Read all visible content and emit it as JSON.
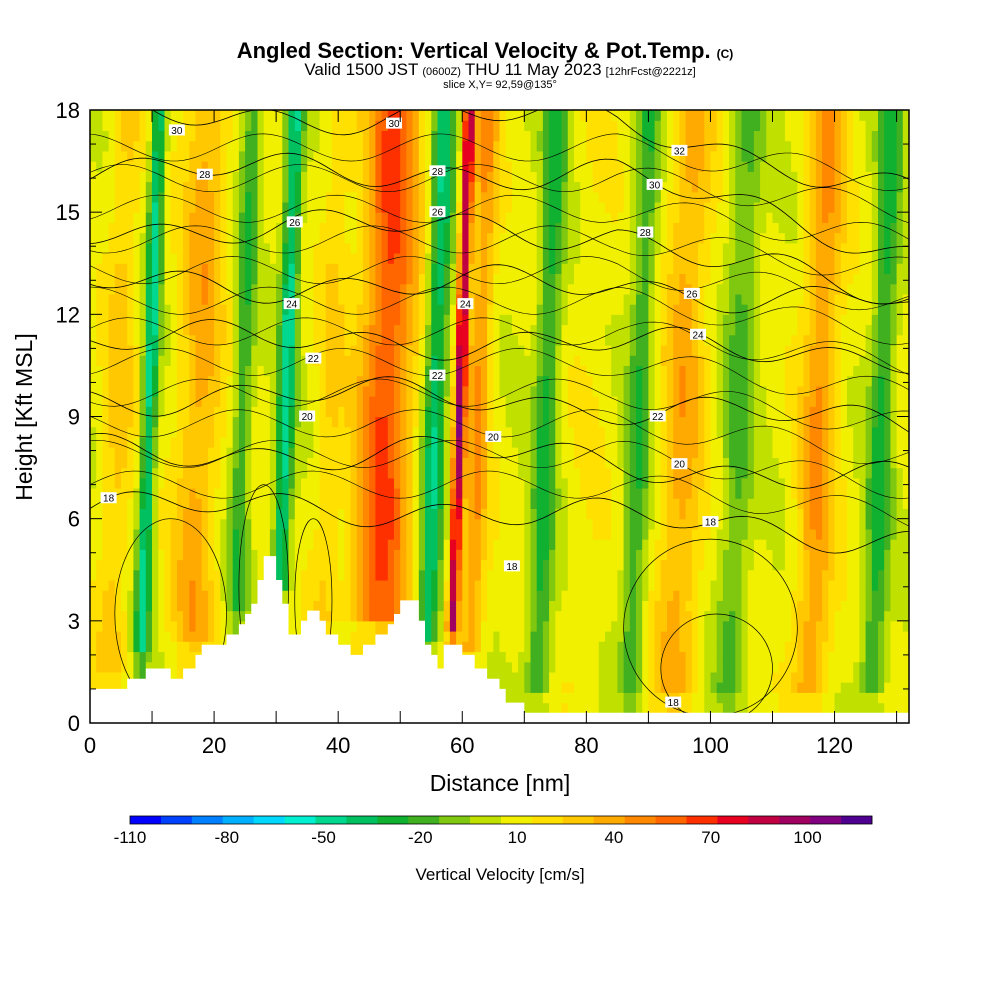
{
  "title": {
    "main": "Angled Section: Vertical Velocity & Pot.Temp.",
    "main_suffix": "(C)",
    "line2_a": "Valid 1500 JST",
    "line2_b": "(0600Z)",
    "line2_c": "THU 11 May 2023",
    "line2_d": "[12hrFcst@2221z]",
    "line3": "slice X,Y= 92,59@135°"
  },
  "chart_data": {
    "type": "heatmap",
    "xlabel": "Distance [nm]",
    "ylabel": "Height [Kft MSL]",
    "xlim": [
      0,
      132
    ],
    "ylim": [
      0,
      18
    ],
    "x_ticks": [
      0,
      20,
      40,
      60,
      80,
      100,
      120
    ],
    "y_ticks": [
      0,
      3,
      6,
      9,
      12,
      15,
      18
    ],
    "colorbar": {
      "title": "Vertical Velocity [cm/s]",
      "tick_labels": [
        "-110",
        "-80",
        "-50",
        "-20",
        "10",
        "40",
        "70",
        "100"
      ],
      "tick_values": [
        -110,
        -80,
        -50,
        -20,
        10,
        40,
        70,
        100
      ],
      "range": [
        -110,
        120
      ],
      "colors": [
        "#0000ff",
        "#0040ff",
        "#0080ff",
        "#00b0ff",
        "#00d8ff",
        "#00f0d0",
        "#00d890",
        "#00c060",
        "#10b030",
        "#40b020",
        "#80c810",
        "#c0e000",
        "#f0f000",
        "#ffe000",
        "#ffc800",
        "#ffaa00",
        "#ff8800",
        "#ff6600",
        "#ff3000",
        "#e80020",
        "#c00040",
        "#a00060",
        "#800080",
        "#500090"
      ]
    },
    "terrain_profile": [
      [
        0,
        1.0
      ],
      [
        6,
        1.0
      ],
      [
        6,
        1.3
      ],
      [
        9,
        1.3
      ],
      [
        9,
        1.6
      ],
      [
        13,
        1.6
      ],
      [
        13,
        1.3
      ],
      [
        15,
        1.3
      ],
      [
        15,
        1.6
      ],
      [
        17,
        1.6
      ],
      [
        17,
        2.0
      ],
      [
        18,
        2.0
      ],
      [
        18,
        2.3
      ],
      [
        22,
        2.3
      ],
      [
        22,
        2.6
      ],
      [
        24,
        2.6
      ],
      [
        24,
        2.9
      ],
      [
        25,
        2.9
      ],
      [
        25,
        3.2
      ],
      [
        26,
        3.2
      ],
      [
        26,
        3.5
      ],
      [
        27,
        3.5
      ],
      [
        27,
        4.2
      ],
      [
        28,
        4.2
      ],
      [
        28,
        4.9
      ],
      [
        30,
        4.9
      ],
      [
        30,
        4.2
      ],
      [
        31,
        4.2
      ],
      [
        31,
        3.5
      ],
      [
        32,
        3.5
      ],
      [
        32,
        2.6
      ],
      [
        34,
        2.6
      ],
      [
        34,
        3.0
      ],
      [
        35,
        3.0
      ],
      [
        35,
        3.3
      ],
      [
        37,
        3.3
      ],
      [
        37,
        3.0
      ],
      [
        38,
        3.0
      ],
      [
        38,
        2.6
      ],
      [
        40,
        2.6
      ],
      [
        40,
        2.3
      ],
      [
        42,
        2.3
      ],
      [
        42,
        2.0
      ],
      [
        44,
        2.0
      ],
      [
        44,
        2.3
      ],
      [
        46,
        2.3
      ],
      [
        46,
        2.6
      ],
      [
        48,
        2.6
      ],
      [
        48,
        2.9
      ],
      [
        49,
        2.9
      ],
      [
        49,
        3.2
      ],
      [
        50,
        3.2
      ],
      [
        50,
        3.6
      ],
      [
        53,
        3.6
      ],
      [
        53,
        3.0
      ],
      [
        54,
        3.0
      ],
      [
        54,
        2.3
      ],
      [
        55,
        2.3
      ],
      [
        55,
        2.0
      ],
      [
        56,
        2.0
      ],
      [
        56,
        1.6
      ],
      [
        57,
        1.6
      ],
      [
        57,
        2.3
      ],
      [
        60,
        2.3
      ],
      [
        60,
        2.0
      ],
      [
        62,
        2.0
      ],
      [
        62,
        1.6
      ],
      [
        64,
        1.6
      ],
      [
        64,
        1.3
      ],
      [
        66,
        1.3
      ],
      [
        66,
        1.0
      ],
      [
        67,
        1.0
      ],
      [
        67,
        0.6
      ],
      [
        70,
        0.6
      ],
      [
        70,
        0.3
      ],
      [
        132,
        0.3
      ]
    ],
    "updraft_cores": [
      {
        "x": 4,
        "w": 2.5,
        "value": 20
      },
      {
        "x": 9,
        "w": 1.2,
        "value": -55
      },
      {
        "x": 17,
        "w": 3.5,
        "value": 30
      },
      {
        "x": 24,
        "w": 1.6,
        "value": -30
      },
      {
        "x": 31,
        "w": 1.4,
        "value": -55
      },
      {
        "x": 38,
        "w": 2.2,
        "value": 15
      },
      {
        "x": 47,
        "w": 4.5,
        "value": 55
      },
      {
        "x": 55,
        "w": 1.8,
        "value": -50
      },
      {
        "x": 59,
        "w": 0.9,
        "value": 85
      },
      {
        "x": 62,
        "w": 2.0,
        "value": 35
      },
      {
        "x": 73,
        "w": 2.0,
        "value": -35
      },
      {
        "x": 80,
        "w": 3.5,
        "value": 5
      },
      {
        "x": 88,
        "w": 2.0,
        "value": -30
      },
      {
        "x": 95,
        "w": 3.5,
        "value": 30
      },
      {
        "x": 104,
        "w": 2.5,
        "value": -25
      },
      {
        "x": 117,
        "w": 3.0,
        "value": 35
      },
      {
        "x": 127,
        "w": 2.0,
        "value": -35
      }
    ],
    "contour_labels": [
      {
        "value": "30",
        "x": 14,
        "y": 17.4
      },
      {
        "value": "30",
        "x": 49,
        "y": 17.6
      },
      {
        "value": "32",
        "x": 95,
        "y": 16.8
      },
      {
        "value": "30",
        "x": 91,
        "y": 15.8
      },
      {
        "value": "28",
        "x": 18.5,
        "y": 16.1
      },
      {
        "value": "28",
        "x": 56,
        "y": 16.2
      },
      {
        "value": "28",
        "x": 89.5,
        "y": 14.4
      },
      {
        "value": "26",
        "x": 33,
        "y": 14.7
      },
      {
        "value": "26",
        "x": 56,
        "y": 15.0
      },
      {
        "value": "26",
        "x": 97,
        "y": 12.6
      },
      {
        "value": "24",
        "x": 32.5,
        "y": 12.3
      },
      {
        "value": "24",
        "x": 60.5,
        "y": 12.3
      },
      {
        "value": "24",
        "x": 98,
        "y": 11.4
      },
      {
        "value": "22",
        "x": 36,
        "y": 10.7
      },
      {
        "value": "22",
        "x": 56,
        "y": 10.2
      },
      {
        "value": "22",
        "x": 91.5,
        "y": 9.0
      },
      {
        "value": "20",
        "x": 35,
        "y": 9.0
      },
      {
        "value": "20",
        "x": 65,
        "y": 8.4
      },
      {
        "value": "20",
        "x": 95,
        "y": 7.6
      },
      {
        "value": "18",
        "x": 3,
        "y": 6.6
      },
      {
        "value": "18",
        "x": 68,
        "y": 4.6
      },
      {
        "value": "18",
        "x": 100,
        "y": 5.9
      },
      {
        "value": "18",
        "x": 94,
        "y": 0.6
      }
    ]
  }
}
